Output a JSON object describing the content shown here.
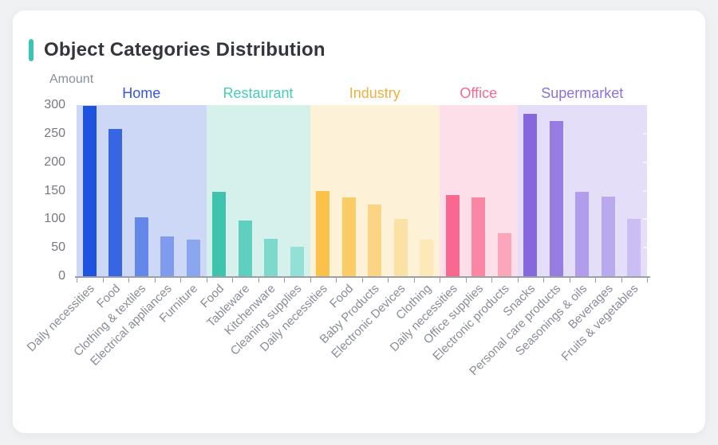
{
  "page": {
    "background": "#f0f1f3"
  },
  "card": {
    "title": "Object Categories Distribution",
    "accent_color": "#3bc3b3"
  },
  "chart_data": {
    "type": "bar",
    "title": "Object Categories Distribution",
    "xlabel": "",
    "ylabel": "Amount",
    "ylim": [
      0,
      300
    ],
    "y_ticks": [
      0,
      50,
      100,
      150,
      200,
      250,
      300
    ],
    "grid": false,
    "legend_position": "group headers above plot, colored per group",
    "groups": [
      {
        "name": "Home",
        "label_color": "#3355e8",
        "band_color": "#cdd8f6",
        "bars": [
          {
            "label": "Daily necessities",
            "value": 298,
            "color": "#1d53de"
          },
          {
            "label": "Food",
            "value": 258,
            "color": "#3766e3"
          },
          {
            "label": "Clothing & textiles",
            "value": 103,
            "color": "#6488ea"
          },
          {
            "label": "Electrical appliances",
            "value": 70,
            "color": "#7e9bee"
          },
          {
            "label": "Furniture",
            "value": 64,
            "color": "#8ba6f0"
          }
        ]
      },
      {
        "name": "Restaurant",
        "label_color": "#45cdbb",
        "band_color": "#d6f1ec",
        "bars": [
          {
            "label": "Food",
            "value": 148,
            "color": "#3ec4ae"
          },
          {
            "label": "Tableware",
            "value": 98,
            "color": "#5fcfc0"
          },
          {
            "label": "Kitchenware",
            "value": 65,
            "color": "#7cd9cc"
          },
          {
            "label": "Cleaning supplies",
            "value": 51,
            "color": "#92e0d6"
          }
        ]
      },
      {
        "name": "Industry",
        "label_color": "#efaf3f",
        "band_color": "#fdf2d7",
        "bars": [
          {
            "label": "Daily necessities",
            "value": 150,
            "color": "#fbc148"
          },
          {
            "label": "Food",
            "value": 138,
            "color": "#fbcb66"
          },
          {
            "label": "Baby Products",
            "value": 126,
            "color": "#fcd584"
          },
          {
            "label": "Electronic Devices",
            "value": 100,
            "color": "#fce1a4"
          },
          {
            "label": "Clothing",
            "value": 64,
            "color": "#fde8b8"
          }
        ]
      },
      {
        "name": "Office",
        "label_color": "#f9688f",
        "band_color": "#fcdfe9",
        "bars": [
          {
            "label": "Daily necessities",
            "value": 142,
            "color": "#fa6890"
          },
          {
            "label": "Office supplies",
            "value": 138,
            "color": "#fb86a4"
          },
          {
            "label": "Electronic products",
            "value": 75,
            "color": "#fca6bc"
          }
        ]
      },
      {
        "name": "Supermarket",
        "label_color": "#8a70e0",
        "band_color": "#e5def8",
        "bars": [
          {
            "label": "Snacks",
            "value": 285,
            "color": "#8667dd"
          },
          {
            "label": "Personal care products",
            "value": 272,
            "color": "#977ce2"
          },
          {
            "label": "Seasonings & oils",
            "value": 148,
            "color": "#b29ced"
          },
          {
            "label": "Beverages",
            "value": 140,
            "color": "#bba9ef"
          },
          {
            "label": "Fruits & vegetables",
            "value": 101,
            "color": "#ccbdf4"
          }
        ]
      }
    ]
  }
}
